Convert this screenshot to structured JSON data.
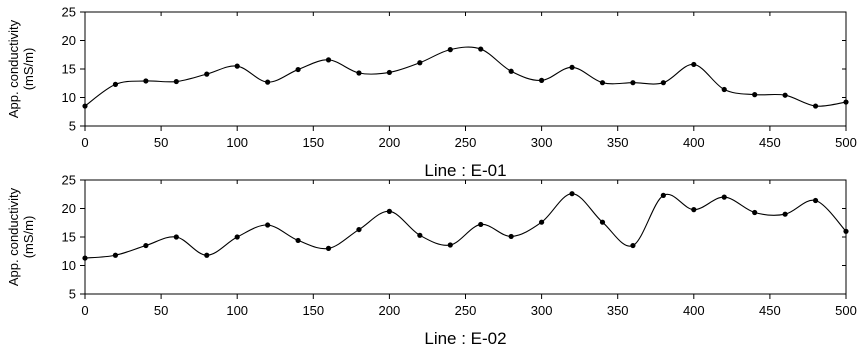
{
  "chart_data": [
    {
      "type": "line",
      "title": "Line : E-01",
      "xlabel": "",
      "ylabel": "App. conductivity (mS/m)",
      "ylabel_lines": [
        "App. conductivity",
        "(mS/m)"
      ],
      "xlim": [
        0,
        500
      ],
      "ylim": [
        5,
        25
      ],
      "xticks": [
        0,
        50,
        100,
        150,
        200,
        250,
        300,
        350,
        400,
        450,
        500
      ],
      "yticks": [
        5,
        10,
        15,
        20,
        25
      ],
      "grid": false,
      "smooth": true,
      "markers": true,
      "x": [
        0,
        20,
        40,
        60,
        80,
        100,
        120,
        140,
        160,
        180,
        200,
        220,
        240,
        260,
        280,
        300,
        320,
        340,
        360,
        380,
        400,
        420,
        440,
        460,
        480,
        500
      ],
      "y": [
        8.5,
        12.3,
        12.9,
        12.8,
        14.1,
        15.5,
        12.7,
        14.9,
        16.6,
        14.3,
        14.4,
        16.1,
        18.4,
        18.5,
        14.6,
        13.0,
        15.3,
        12.6,
        12.6,
        12.6,
        15.8,
        11.4,
        10.5,
        10.4,
        8.5,
        9.2
      ]
    },
    {
      "type": "line",
      "title": "Line : E-02",
      "xlabel": "",
      "ylabel": "App. conductivity (mS/m)",
      "ylabel_lines": [
        "App. conductivity",
        "(mS/m)"
      ],
      "xlim": [
        0,
        500
      ],
      "ylim": [
        5,
        25
      ],
      "xticks": [
        0,
        50,
        100,
        150,
        200,
        250,
        300,
        350,
        400,
        450,
        500
      ],
      "yticks": [
        5,
        10,
        15,
        20,
        25
      ],
      "grid": false,
      "smooth": true,
      "markers": true,
      "x": [
        0,
        20,
        40,
        60,
        80,
        100,
        120,
        140,
        160,
        180,
        200,
        220,
        240,
        260,
        280,
        300,
        320,
        340,
        360,
        380,
        400,
        420,
        440,
        460,
        480,
        500
      ],
      "y": [
        11.3,
        11.8,
        13.5,
        15.0,
        11.8,
        15.0,
        17.1,
        14.4,
        13.0,
        16.3,
        19.5,
        15.3,
        13.6,
        17.2,
        15.1,
        17.6,
        22.6,
        17.6,
        13.5,
        22.3,
        19.8,
        22.0,
        19.3,
        19.0,
        21.4,
        16.0
      ]
    }
  ]
}
